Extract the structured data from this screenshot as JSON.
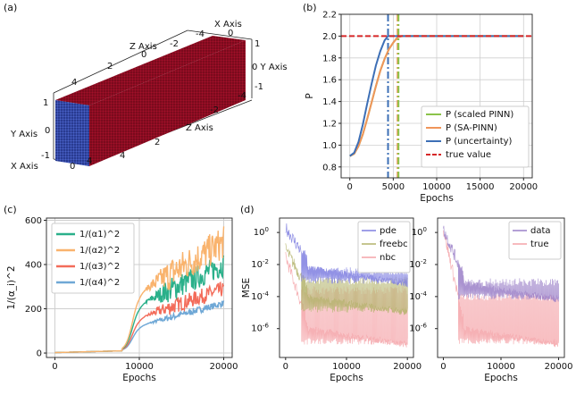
{
  "panels": {
    "a": {
      "label": "(a)",
      "type": "3d-point-cloud",
      "point_color": "#8b0a1e",
      "face_color": "#3a4fb0",
      "axis_labels": [
        "X Axis",
        "Z Axis",
        "Y Axis",
        "Z Axis",
        "0 Y Axis",
        "Y Axis",
        "X Axis"
      ],
      "ticks": [
        "-4",
        "-2",
        "0",
        "0",
        "2",
        "4",
        "1",
        "0",
        "-1",
        "-2",
        "-4",
        "2",
        "4",
        "1",
        "0",
        "-1",
        "0",
        "4",
        "1",
        "0",
        "-1",
        "-1",
        "0"
      ]
    },
    "b": {
      "label": "(b)"
    },
    "c": {
      "label": "(c)"
    },
    "d": {
      "label": "(d)"
    }
  },
  "chart_data": [
    {
      "id": "b",
      "type": "line",
      "xlabel": "Epochs",
      "ylabel": "P",
      "xlim": [
        -1000,
        21000
      ],
      "ylim": [
        0.7,
        2.2
      ],
      "xticks": [
        0,
        5000,
        10000,
        15000,
        20000
      ],
      "yticks": [
        0.8,
        1.0,
        1.2,
        1.4,
        1.6,
        1.8,
        2.0,
        2.2
      ],
      "grid": true,
      "legend_position": "lower-right",
      "series": [
        {
          "name": "P (scaled PINN)",
          "color": "#8bc34a",
          "x": [
            0,
            500,
            1000,
            1500,
            2000,
            2500,
            3000,
            3500,
            4000,
            4500,
            5000,
            5500,
            6000,
            10000,
            15000,
            20000
          ],
          "y": [
            0.9,
            0.92,
            0.99,
            1.1,
            1.24,
            1.39,
            1.54,
            1.68,
            1.79,
            1.88,
            1.94,
            1.99,
            2.0,
            2.0,
            2.0,
            2.0
          ]
        },
        {
          "name": "P (SA-PINN)",
          "color": "#f0955a",
          "x": [
            0,
            500,
            1000,
            1500,
            2000,
            2500,
            3000,
            3500,
            4000,
            4500,
            5000,
            5500,
            6000,
            10000,
            15000,
            20000
          ],
          "y": [
            0.9,
            0.92,
            0.99,
            1.1,
            1.24,
            1.39,
            1.54,
            1.68,
            1.79,
            1.88,
            1.94,
            1.99,
            2.0,
            2.0,
            2.0,
            2.0
          ]
        },
        {
          "name": "P (uncertainty)",
          "color": "#3d6fb6",
          "x": [
            0,
            500,
            1000,
            1500,
            2000,
            2500,
            3000,
            3500,
            4000,
            4400,
            5000,
            10000,
            15000,
            20000
          ],
          "y": [
            0.9,
            0.93,
            1.03,
            1.19,
            1.38,
            1.56,
            1.73,
            1.86,
            1.96,
            2.0,
            2.0,
            2.0,
            2.0,
            2.0
          ]
        },
        {
          "name": "true value",
          "color": "#d62728",
          "style": "dashed",
          "x": [
            -1000,
            21000
          ],
          "y": [
            2.0,
            2.0
          ]
        }
      ],
      "vlines": [
        {
          "x": 4400,
          "color": "#3d6fb6",
          "style": "dashdot"
        },
        {
          "x": 5500,
          "color": "#f0955a",
          "style": "dashdot"
        },
        {
          "x": 5600,
          "color": "#8bc34a",
          "style": "dashdot"
        }
      ]
    },
    {
      "id": "c",
      "type": "line",
      "xlabel": "Epochs",
      "ylabel": "1/(α_i)^2",
      "xlim": [
        -1000,
        21000
      ],
      "ylim": [
        -20,
        610
      ],
      "xticks": [
        0,
        10000,
        20000
      ],
      "yticks": [
        0,
        200,
        400,
        600
      ],
      "grid": true,
      "legend_position": "upper-left",
      "series": [
        {
          "name": "1/(α1)^2",
          "color": "#2ab08a",
          "final_mean": 400,
          "final_noise": 55
        },
        {
          "name": "1/(α2)^2",
          "color": "#f9b36d",
          "final_mean": 500,
          "final_noise": 75
        },
        {
          "name": "1/(α3)^2",
          "color": "#f36c5a",
          "final_mean": 290,
          "final_noise": 35
        },
        {
          "name": "1/(α4)^2",
          "color": "#6fa8d6",
          "final_mean": 225,
          "final_noise": 15
        }
      ]
    },
    {
      "id": "d-left",
      "type": "line",
      "xlabel": "Epochs",
      "ylabel": "MSE",
      "yscale": "log",
      "xlim": [
        -1000,
        21000
      ],
      "ylim_exp": [
        -7.8,
        0.9
      ],
      "xticks": [
        0,
        10000,
        20000
      ],
      "yticks_exp": [
        0,
        -2,
        -4,
        -6
      ],
      "legend_position": "upper-right",
      "series": [
        {
          "name": "pde",
          "color": "#7f7fe0",
          "start_exp": 0.3,
          "floor_exp": -3.2,
          "spike_exp": -2.4
        },
        {
          "name": "freebc",
          "color": "#b3b36b",
          "start_exp": -1.0,
          "floor_exp": -5.0,
          "spike_exp": -3.0
        },
        {
          "name": "nbc",
          "color": "#f4a3a8",
          "start_exp": -1.5,
          "floor_exp": -7.0,
          "spike_exp": -3.6
        }
      ]
    },
    {
      "id": "d-right",
      "type": "line",
      "xlabel": "Epochs",
      "yscale": "log",
      "xlim": [
        -1000,
        21000
      ],
      "ylim_exp": [
        -7.8,
        0.9
      ],
      "xticks": [
        0,
        10000,
        20000
      ],
      "yticks_exp": [
        0,
        -2,
        -4,
        -6
      ],
      "legend_position": "upper-right",
      "series": [
        {
          "name": "data",
          "color": "#9b80c8",
          "start_exp": 0.2,
          "floor_exp": -4.2,
          "spike_exp": -3.1
        },
        {
          "name": "true",
          "color": "#f4a3a8",
          "start_exp": 0.2,
          "floor_exp": -7.0,
          "spike_exp": -4.0
        }
      ]
    }
  ]
}
